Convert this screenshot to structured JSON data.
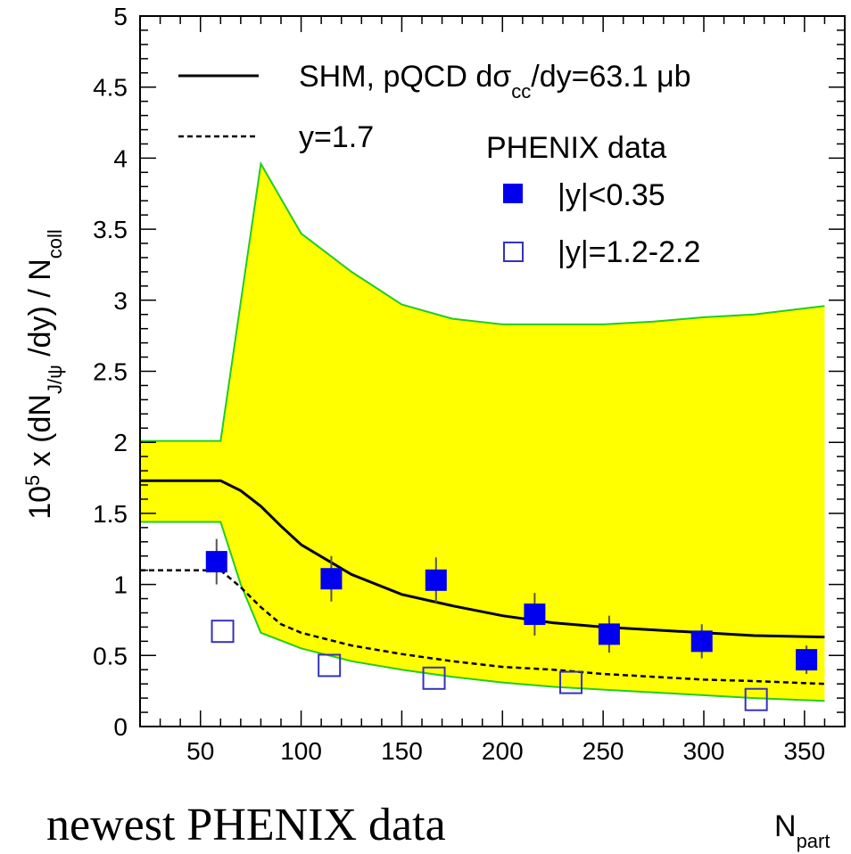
{
  "chart_data": {
    "type": "line",
    "title": "",
    "xlabel": {
      "main": "N",
      "sub": "part"
    },
    "ylabel": {
      "p1": "10",
      "sup": "5",
      "p2": " x (dN",
      "sub1": "J/ψ",
      "p3": " /dy) / N",
      "sub2": "coll"
    },
    "xlim": [
      20,
      370
    ],
    "ylim": [
      0,
      5
    ],
    "xticks": [
      50,
      100,
      150,
      200,
      250,
      300,
      350
    ],
    "xtick_labels": [
      "50",
      "100",
      "150",
      "200",
      "250",
      "300",
      "350"
    ],
    "yticks": [
      0,
      0.5,
      1,
      1.5,
      2,
      2.5,
      3,
      3.5,
      4,
      4.5,
      5
    ],
    "ytick_labels": [
      "0",
      "0.5",
      "1",
      "1.5",
      "2",
      "2.5",
      "3",
      "3.5",
      "4",
      "4.5",
      "5"
    ],
    "grid": false,
    "band": {
      "name": "SHM uncertainty",
      "color": "#ffff00",
      "edge_color": "#22cc22",
      "upper": [
        [
          20,
          2.01
        ],
        [
          60,
          2.01
        ],
        [
          80,
          3.96
        ],
        [
          100,
          3.47
        ],
        [
          125,
          3.2
        ],
        [
          150,
          2.97
        ],
        [
          175,
          2.87
        ],
        [
          200,
          2.83
        ],
        [
          250,
          2.83
        ],
        [
          275,
          2.85
        ],
        [
          300,
          2.88
        ],
        [
          325,
          2.9
        ],
        [
          360,
          2.96
        ]
      ],
      "lower": [
        [
          20,
          1.44
        ],
        [
          60,
          1.44
        ],
        [
          70,
          1.0
        ],
        [
          80,
          0.66
        ],
        [
          100,
          0.55
        ],
        [
          125,
          0.46
        ],
        [
          150,
          0.4
        ],
        [
          175,
          0.35
        ],
        [
          200,
          0.31
        ],
        [
          225,
          0.28
        ],
        [
          250,
          0.26
        ],
        [
          275,
          0.24
        ],
        [
          300,
          0.22
        ],
        [
          325,
          0.2
        ],
        [
          360,
          0.18
        ]
      ]
    },
    "series": [
      {
        "name": "SHM, pQCD dσcc/dy=63.1 μb",
        "style": "solid",
        "color": "#000000",
        "points": [
          [
            20,
            1.73
          ],
          [
            60,
            1.73
          ],
          [
            70,
            1.66
          ],
          [
            80,
            1.55
          ],
          [
            90,
            1.41
          ],
          [
            100,
            1.28
          ],
          [
            125,
            1.07
          ],
          [
            150,
            0.93
          ],
          [
            175,
            0.85
          ],
          [
            200,
            0.78
          ],
          [
            225,
            0.73
          ],
          [
            250,
            0.7
          ],
          [
            275,
            0.68
          ],
          [
            300,
            0.66
          ],
          [
            325,
            0.64
          ],
          [
            360,
            0.63
          ]
        ]
      },
      {
        "name": "y=1.7",
        "style": "dashed",
        "color": "#000000",
        "points": [
          [
            20,
            1.1
          ],
          [
            60,
            1.1
          ],
          [
            70,
            0.98
          ],
          [
            80,
            0.84
          ],
          [
            90,
            0.72
          ],
          [
            100,
            0.66
          ],
          [
            125,
            0.57
          ],
          [
            150,
            0.51
          ],
          [
            175,
            0.46
          ],
          [
            200,
            0.42
          ],
          [
            225,
            0.4
          ],
          [
            250,
            0.37
          ],
          [
            275,
            0.35
          ],
          [
            300,
            0.33
          ],
          [
            325,
            0.32
          ],
          [
            360,
            0.3
          ]
        ]
      },
      {
        "name": "|y|<0.35",
        "marker": "filled-square",
        "color": "#0000ee",
        "x": [
          58,
          115,
          167,
          216,
          253,
          299,
          351
        ],
        "y": [
          1.16,
          1.04,
          1.03,
          0.79,
          0.65,
          0.6,
          0.47
        ],
        "err": [
          0.16,
          0.16,
          0.16,
          0.15,
          0.13,
          0.12,
          0.1
        ]
      },
      {
        "name": "|y|=1.2-2.2",
        "marker": "open-square",
        "color": "#3333bb",
        "x": [
          61,
          114,
          166,
          234,
          326
        ],
        "y": [
          0.67,
          0.43,
          0.34,
          0.31,
          0.19
        ]
      }
    ],
    "legend": {
      "placement": "top",
      "line1": {
        "p1": "SHM, pQCD dσ",
        "sub": "cc",
        "p2": "/dy=63.1 μb"
      },
      "line2": "y=1.7",
      "group_title": "PHENIX data",
      "marker1": "|y|<0.35",
      "marker2": "|y|=1.2-2.2"
    },
    "caption": "newest PHENIX data"
  }
}
